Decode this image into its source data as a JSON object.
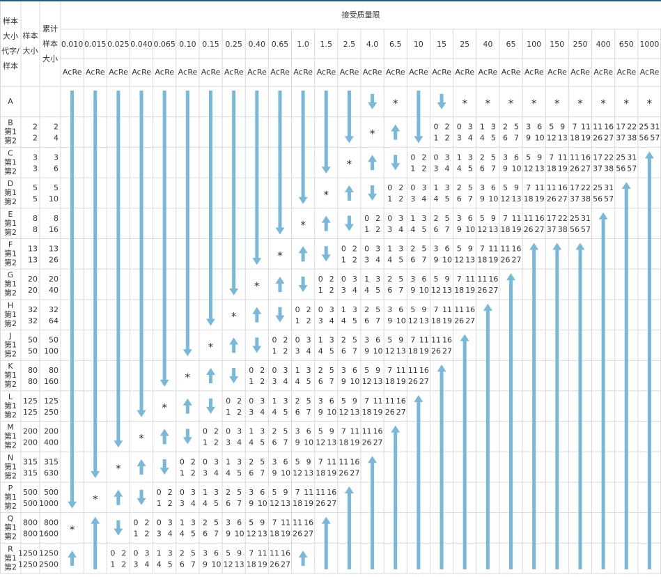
{
  "header": {
    "title": "接受质量限",
    "code_lines": [
      "样本",
      "大小",
      "代字/",
      "样本"
    ],
    "size_lines": [
      "样本",
      "大小"
    ],
    "cum_lines": [
      "累计",
      "样本",
      "大小"
    ],
    "aql": [
      "0.010",
      "0.015",
      "0.025",
      "0.040",
      "0.065",
      "0.10",
      "0.15",
      "0.25",
      "0.40",
      "0.65",
      "1.0",
      "1.5",
      "2.5",
      "4.0",
      "6.5",
      "10",
      "15",
      "25",
      "40",
      "65",
      "100",
      "150",
      "250",
      "400",
      "650",
      "1000"
    ],
    "ac": "Ac",
    "re": "Re",
    "stages": [
      "第1",
      "第2"
    ]
  },
  "rows": [
    {
      "code": "A",
      "cells": [
        null,
        null,
        null,
        null,
        null,
        null,
        null,
        null,
        null,
        null,
        null,
        null,
        null,
        null,
        "*",
        null,
        null,
        "*",
        "*",
        "*",
        "*",
        "*",
        "*",
        "*",
        "*",
        "*"
      ]
    },
    {
      "code": "B",
      "sizes": [
        2,
        2
      ],
      "cumulative": [
        2,
        4
      ],
      "cells": [
        null,
        null,
        null,
        null,
        null,
        null,
        null,
        null,
        null,
        null,
        null,
        null,
        null,
        "*",
        null,
        null,
        [
          0,
          2,
          1,
          2
        ],
        [
          0,
          3,
          3,
          4
        ],
        [
          1,
          3,
          4,
          5
        ],
        [
          2,
          5,
          6,
          7
        ],
        [
          3,
          6,
          9,
          10
        ],
        [
          5,
          9,
          12,
          13
        ],
        [
          7,
          11,
          18,
          19
        ],
        [
          11,
          16,
          26,
          27
        ],
        [
          17,
          22,
          37,
          38
        ],
        [
          25,
          31,
          56,
          57
        ]
      ]
    },
    {
      "code": "C",
      "sizes": [
        3,
        3
      ],
      "cumulative": [
        3,
        6
      ],
      "cells": [
        null,
        null,
        null,
        null,
        null,
        null,
        null,
        null,
        null,
        null,
        null,
        null,
        "*",
        null,
        null,
        [
          0,
          2,
          1,
          2
        ],
        [
          0,
          3,
          3,
          4
        ],
        [
          1,
          3,
          4,
          5
        ],
        [
          2,
          5,
          6,
          7
        ],
        [
          3,
          6,
          9,
          10
        ],
        [
          5,
          9,
          12,
          13
        ],
        [
          7,
          11,
          18,
          19
        ],
        [
          11,
          16,
          26,
          27
        ],
        [
          17,
          22,
          37,
          38
        ],
        [
          25,
          31,
          56,
          57
        ],
        null
      ]
    },
    {
      "code": "D",
      "sizes": [
        5,
        5
      ],
      "cumulative": [
        5,
        10
      ],
      "cells": [
        null,
        null,
        null,
        null,
        null,
        null,
        null,
        null,
        null,
        null,
        null,
        "*",
        null,
        null,
        [
          0,
          2,
          1,
          2
        ],
        [
          0,
          3,
          3,
          4
        ],
        [
          1,
          3,
          4,
          5
        ],
        [
          2,
          5,
          6,
          7
        ],
        [
          3,
          6,
          9,
          10
        ],
        [
          5,
          9,
          12,
          13
        ],
        [
          7,
          11,
          18,
          19
        ],
        [
          11,
          16,
          26,
          27
        ],
        [
          17,
          22,
          37,
          38
        ],
        [
          25,
          31,
          56,
          57
        ],
        null,
        null
      ]
    },
    {
      "code": "E",
      "sizes": [
        8,
        8
      ],
      "cumulative": [
        8,
        16
      ],
      "cells": [
        null,
        null,
        null,
        null,
        null,
        null,
        null,
        null,
        null,
        null,
        "*",
        null,
        null,
        [
          0,
          2,
          1,
          2
        ],
        [
          0,
          3,
          3,
          4
        ],
        [
          1,
          3,
          4,
          5
        ],
        [
          2,
          5,
          6,
          7
        ],
        [
          3,
          6,
          9,
          10
        ],
        [
          5,
          9,
          12,
          13
        ],
        [
          7,
          11,
          18,
          19
        ],
        [
          11,
          16,
          26,
          27
        ],
        [
          17,
          22,
          37,
          38
        ],
        [
          25,
          31,
          56,
          57
        ],
        null,
        null,
        null
      ]
    },
    {
      "code": "F",
      "sizes": [
        13,
        13
      ],
      "cumulative": [
        13,
        26
      ],
      "cells": [
        null,
        null,
        null,
        null,
        null,
        null,
        null,
        null,
        null,
        "*",
        null,
        null,
        [
          0,
          2,
          1,
          2
        ],
        [
          0,
          3,
          3,
          4
        ],
        [
          1,
          3,
          4,
          5
        ],
        [
          2,
          5,
          6,
          7
        ],
        [
          3,
          6,
          9,
          10
        ],
        [
          5,
          9,
          12,
          13
        ],
        [
          7,
          11,
          18,
          19
        ],
        [
          11,
          16,
          26,
          27
        ],
        null,
        null,
        null,
        null,
        null,
        null
      ]
    },
    {
      "code": "G",
      "sizes": [
        20,
        20
      ],
      "cumulative": [
        20,
        40
      ],
      "cells": [
        null,
        null,
        null,
        null,
        null,
        null,
        null,
        null,
        "*",
        null,
        null,
        [
          0,
          2,
          1,
          2
        ],
        [
          0,
          3,
          3,
          4
        ],
        [
          1,
          3,
          4,
          5
        ],
        [
          2,
          5,
          6,
          7
        ],
        [
          3,
          6,
          9,
          10
        ],
        [
          5,
          9,
          12,
          13
        ],
        [
          7,
          11,
          18,
          19
        ],
        [
          11,
          16,
          26,
          27
        ],
        null,
        null,
        null,
        null,
        null,
        null,
        null
      ]
    },
    {
      "code": "H",
      "sizes": [
        32,
        32
      ],
      "cumulative": [
        32,
        64
      ],
      "cells": [
        null,
        null,
        null,
        null,
        null,
        null,
        null,
        "*",
        null,
        null,
        [
          0,
          2,
          1,
          2
        ],
        [
          0,
          3,
          3,
          4
        ],
        [
          1,
          3,
          4,
          5
        ],
        [
          2,
          5,
          6,
          7
        ],
        [
          3,
          6,
          9,
          10
        ],
        [
          5,
          9,
          12,
          13
        ],
        [
          7,
          11,
          18,
          19
        ],
        [
          11,
          16,
          26,
          27
        ],
        null,
        null,
        null,
        null,
        null,
        null,
        null,
        null
      ]
    },
    {
      "code": "J",
      "sizes": [
        50,
        50
      ],
      "cumulative": [
        50,
        100
      ],
      "cells": [
        null,
        null,
        null,
        null,
        null,
        null,
        "*",
        null,
        null,
        [
          0,
          2,
          1,
          2
        ],
        [
          0,
          3,
          3,
          4
        ],
        [
          1,
          3,
          4,
          5
        ],
        [
          2,
          5,
          6,
          7
        ],
        [
          3,
          6,
          9,
          10
        ],
        [
          5,
          9,
          12,
          13
        ],
        [
          7,
          11,
          18,
          19
        ],
        [
          11,
          16,
          26,
          27
        ],
        null,
        null,
        null,
        null,
        null,
        null,
        null,
        null,
        null
      ]
    },
    {
      "code": "K",
      "sizes": [
        80,
        80
      ],
      "cumulative": [
        80,
        160
      ],
      "cells": [
        null,
        null,
        null,
        null,
        null,
        "*",
        null,
        null,
        [
          0,
          2,
          1,
          2
        ],
        [
          0,
          3,
          3,
          4
        ],
        [
          1,
          3,
          4,
          5
        ],
        [
          2,
          5,
          6,
          7
        ],
        [
          3,
          6,
          9,
          10
        ],
        [
          5,
          9,
          12,
          13
        ],
        [
          7,
          11,
          18,
          19
        ],
        [
          11,
          16,
          26,
          27
        ],
        null,
        null,
        null,
        null,
        null,
        null,
        null,
        null,
        null,
        null
      ]
    },
    {
      "code": "L",
      "sizes": [
        125,
        125
      ],
      "cumulative": [
        125,
        250
      ],
      "cells": [
        null,
        null,
        null,
        null,
        "*",
        null,
        null,
        [
          0,
          2,
          1,
          2
        ],
        [
          0,
          3,
          3,
          4
        ],
        [
          1,
          3,
          4,
          5
        ],
        [
          2,
          5,
          6,
          7
        ],
        [
          3,
          6,
          9,
          10
        ],
        [
          5,
          9,
          12,
          13
        ],
        [
          7,
          11,
          18,
          19
        ],
        [
          11,
          16,
          26,
          27
        ],
        null,
        null,
        null,
        null,
        null,
        null,
        null,
        null,
        null,
        null,
        null
      ]
    },
    {
      "code": "M",
      "sizes": [
        200,
        200
      ],
      "cumulative": [
        200,
        400
      ],
      "cells": [
        null,
        null,
        null,
        "*",
        null,
        null,
        [
          0,
          2,
          1,
          2
        ],
        [
          0,
          3,
          3,
          4
        ],
        [
          1,
          3,
          4,
          5
        ],
        [
          2,
          5,
          6,
          7
        ],
        [
          3,
          6,
          9,
          10
        ],
        [
          5,
          9,
          12,
          13
        ],
        [
          7,
          11,
          18,
          19
        ],
        [
          11,
          16,
          26,
          27
        ],
        null,
        null,
        null,
        null,
        null,
        null,
        null,
        null,
        null,
        null,
        null,
        null
      ]
    },
    {
      "code": "N",
      "sizes": [
        315,
        315
      ],
      "cumulative": [
        315,
        630
      ],
      "cells": [
        null,
        null,
        "*",
        null,
        null,
        [
          0,
          2,
          1,
          2
        ],
        [
          0,
          3,
          3,
          4
        ],
        [
          1,
          3,
          4,
          5
        ],
        [
          2,
          5,
          6,
          7
        ],
        [
          3,
          6,
          9,
          10
        ],
        [
          5,
          9,
          12,
          13
        ],
        [
          7,
          11,
          18,
          19
        ],
        [
          11,
          16,
          26,
          27
        ],
        null,
        null,
        null,
        null,
        null,
        null,
        null,
        null,
        null,
        null,
        null,
        null,
        null
      ]
    },
    {
      "code": "P",
      "sizes": [
        500,
        500
      ],
      "cumulative": [
        500,
        1000
      ],
      "cells": [
        null,
        "*",
        null,
        null,
        [
          0,
          2,
          1,
          2
        ],
        [
          0,
          3,
          3,
          4
        ],
        [
          1,
          3,
          4,
          5
        ],
        [
          2,
          5,
          6,
          7
        ],
        [
          3,
          6,
          9,
          10
        ],
        [
          5,
          9,
          12,
          13
        ],
        [
          7,
          11,
          18,
          19
        ],
        [
          11,
          16,
          26,
          27
        ],
        null,
        null,
        null,
        null,
        null,
        null,
        null,
        null,
        null,
        null,
        null,
        null,
        null,
        null
      ]
    },
    {
      "code": "Q",
      "sizes": [
        800,
        800
      ],
      "cumulative": [
        800,
        1600
      ],
      "cells": [
        "*",
        null,
        null,
        [
          0,
          2,
          1,
          2
        ],
        [
          0,
          3,
          3,
          4
        ],
        [
          1,
          3,
          4,
          5
        ],
        [
          2,
          5,
          6,
          7
        ],
        [
          3,
          6,
          9,
          10
        ],
        [
          5,
          9,
          12,
          13
        ],
        [
          7,
          11,
          18,
          19
        ],
        [
          11,
          16,
          26,
          27
        ],
        null,
        null,
        null,
        null,
        null,
        null,
        null,
        null,
        null,
        null,
        null,
        null,
        null,
        null,
        null
      ]
    },
    {
      "code": "R",
      "sizes": [
        1250,
        1250
      ],
      "cumulative": [
        1250,
        2500
      ],
      "cells": [
        null,
        null,
        [
          0,
          2,
          1,
          2
        ],
        [
          0,
          3,
          3,
          4
        ],
        [
          1,
          3,
          4,
          5
        ],
        [
          2,
          5,
          6,
          7
        ],
        [
          3,
          6,
          9,
          10
        ],
        [
          5,
          9,
          12,
          13
        ],
        [
          7,
          11,
          18,
          19
        ],
        [
          11,
          16,
          26,
          27
        ],
        null,
        null,
        null,
        null,
        null,
        null,
        null,
        null,
        null,
        null,
        null,
        null,
        null,
        null,
        null,
        null
      ]
    }
  ]
}
